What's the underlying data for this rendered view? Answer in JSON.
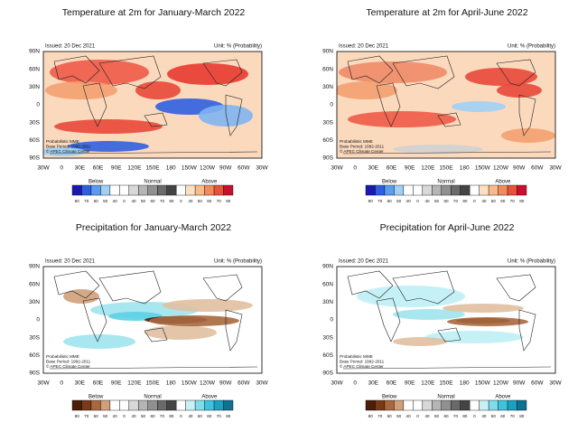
{
  "panels": [
    {
      "title": "Temperature at 2m for January-March 2022",
      "issued": "Issued: 20 Dec 2021",
      "unit": "Unit: % (Probability)",
      "notes": [
        "Probabilistic MME",
        "Base Period: 1992-2011",
        "© APEC Climate Center"
      ],
      "lat_labels": [
        "90N",
        "60N",
        "30N",
        "0",
        "30S",
        "60S",
        "90S"
      ],
      "lon_labels": [
        "30W",
        "0",
        "30E",
        "60E",
        "90E",
        "120E",
        "150E",
        "180",
        "150W",
        "120W",
        "90W",
        "60W",
        "30W"
      ],
      "legend": {
        "below": "Below",
        "normal": "Normal",
        "above": "Above",
        "ticks": [
          "80",
          "70",
          "60",
          "50",
          "40",
          "0",
          "40",
          "50",
          "60",
          "70",
          "80",
          "0",
          "40",
          "50",
          "60",
          "70",
          "80"
        ]
      }
    },
    {
      "title": "Temperature at 2m for April-June 2022",
      "issued": "Issued: 20 Dec 2021",
      "unit": "Unit: % (Probability)",
      "notes": [
        "Probabilistic MME",
        "Base Period: 1992-2011",
        "© APEC Climate Center"
      ],
      "lat_labels": [
        "90N",
        "60N",
        "30N",
        "0",
        "30S",
        "60S",
        "90S"
      ],
      "lon_labels": [
        "30W",
        "0",
        "30E",
        "60E",
        "90E",
        "120E",
        "150E",
        "180",
        "150W",
        "120W",
        "90W",
        "60W",
        "30W"
      ],
      "legend": {
        "below": "Below",
        "normal": "Normal",
        "above": "Above",
        "ticks": [
          "80",
          "70",
          "60",
          "50",
          "40",
          "0",
          "40",
          "50",
          "60",
          "70",
          "80",
          "0",
          "40",
          "50",
          "60",
          "70",
          "80"
        ]
      }
    },
    {
      "title": "Precipitation for January-March 2022",
      "issued": "Issued: 20 Dec 2021",
      "unit": "Unit: % (Probability)",
      "notes": [
        "Probabilistic MME",
        "Base Period: 1992-2011",
        "© APEC Climate Center"
      ],
      "lat_labels": [
        "90N",
        "60N",
        "30N",
        "0",
        "30S",
        "60S",
        "90S"
      ],
      "lon_labels": [
        "30W",
        "0",
        "30E",
        "60E",
        "90E",
        "120E",
        "150E",
        "180",
        "150W",
        "120W",
        "90W",
        "60W",
        "30W"
      ],
      "legend": {
        "below": "Below",
        "normal": "Normal",
        "above": "Above",
        "ticks": [
          "80",
          "70",
          "60",
          "50",
          "40",
          "0",
          "40",
          "50",
          "60",
          "70",
          "80",
          "0",
          "40",
          "50",
          "60",
          "70",
          "80"
        ]
      }
    },
    {
      "title": "Precipitation for April-June 2022",
      "issued": "Issued: 20 Dec 2021",
      "unit": "Unit: % (Probability)",
      "notes": [
        "Probabilistic MME",
        "Base Period: 1992-2011",
        "© APEC Climate Center"
      ],
      "lat_labels": [
        "90N",
        "60N",
        "30N",
        "0",
        "30S",
        "60S",
        "90S"
      ],
      "lon_labels": [
        "30W",
        "0",
        "30E",
        "60E",
        "90E",
        "120E",
        "150E",
        "180",
        "150W",
        "120W",
        "90W",
        "60W",
        "30W"
      ],
      "legend": {
        "below": "Below",
        "normal": "Normal",
        "above": "Above",
        "ticks": [
          "80",
          "70",
          "60",
          "50",
          "40",
          "0",
          "40",
          "50",
          "60",
          "70",
          "80",
          "0",
          "40",
          "50",
          "60",
          "70",
          "80"
        ]
      }
    }
  ]
}
